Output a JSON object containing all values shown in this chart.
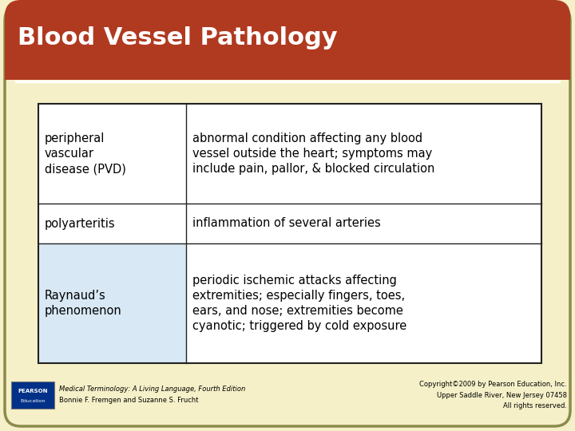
{
  "title": "Blood Vessel Pathology",
  "title_bg": "#B03A20",
  "title_color": "#FFFFFF",
  "slide_bg": "#F5F0C8",
  "slide_border": "#8B8B4B",
  "table_rows": [
    {
      "term": "peripheral\nvascular\ndisease (PVD)",
      "definition": "abnormal condition affecting any blood\nvessel outside the heart; symptoms may\ninclude pain, pallor, & blocked circulation",
      "term_bg": "#FFFFFF",
      "def_bg": "#FFFFFF"
    },
    {
      "term": "polyarteritis",
      "definition": "inflammation of several arteries",
      "term_bg": "#FFFFFF",
      "def_bg": "#FFFFFF"
    },
    {
      "term": "Raynaud’s\nphenomenon",
      "definition": "periodic ischemic attacks affecting\nextremities; especially fingers, toes,\nears, and nose; extremities become\ncyanotic; triggered by cold exposure",
      "term_bg": "#D8E8F5",
      "def_bg": "#FFFFFF"
    }
  ],
  "footer_left_italic": "Medical Terminology: A Living Language, Fourth Edition",
  "footer_left_normal": "Bonnie F. Fremgen and Suzanne S. Frucht",
  "footer_right": "Copyright©2009 by Pearson Education, Inc.\nUpper Saddle River, New Jersey 07458\nAll rights reserved.",
  "footer_color": "#000000",
  "pearson_box_color": "#003087",
  "title_fontsize": 22,
  "table_fontsize": 10.5,
  "footer_fontsize": 6.0
}
